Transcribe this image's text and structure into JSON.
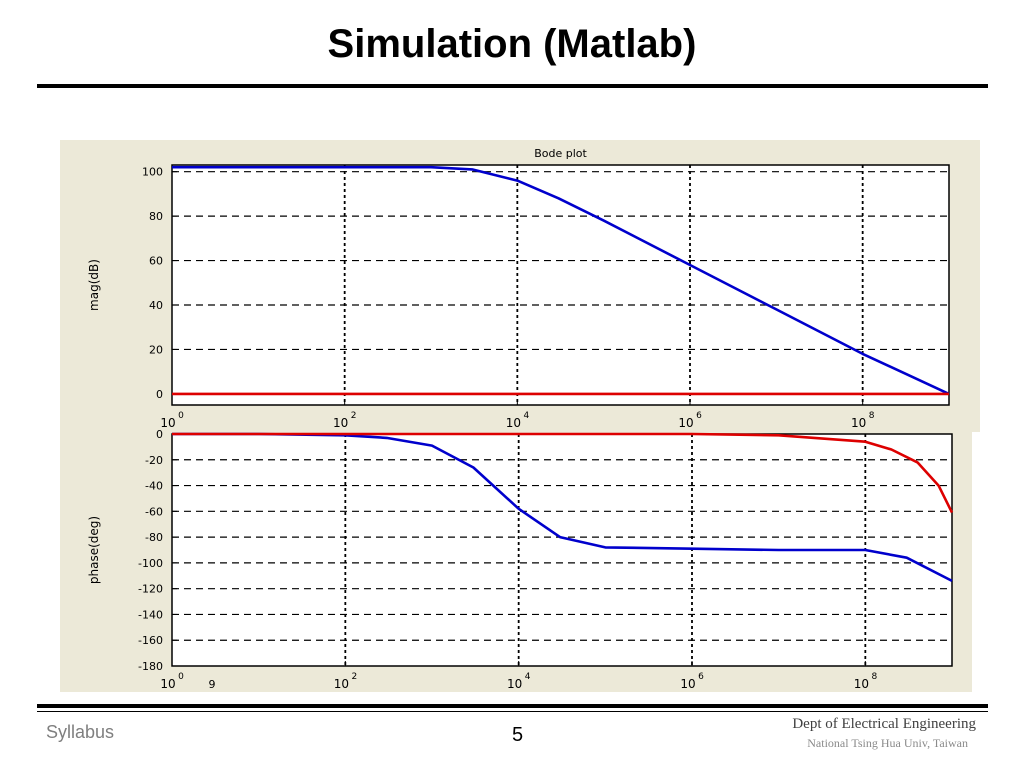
{
  "slide": {
    "title": "Simulation (Matlab)",
    "footer_left": "Syllabus",
    "page_number": "5",
    "footer_right_line1": "Dept of Electrical Engineering",
    "footer_right_line2": "National Tsing Hua Univ, Taiwan"
  },
  "colors": {
    "figure_background": "#ece9d8",
    "series_blue": "#0000cc",
    "series_red": "#dd0000",
    "grid": "#000000"
  },
  "chart_data": [
    {
      "type": "line",
      "title": "Bode plot",
      "xlabel": "",
      "ylabel": "mag(dB)",
      "x_scale": "log",
      "xlim": [
        1,
        1000000000
      ],
      "ylim": [
        -5,
        103
      ],
      "x_ticks": [
        {
          "base": "10",
          "exp": "0"
        },
        {
          "base": "10",
          "exp": "2"
        },
        {
          "base": "10",
          "exp": "4"
        },
        {
          "base": "10",
          "exp": "6"
        },
        {
          "base": "10",
          "exp": "8"
        }
      ],
      "y_ticks": [
        "100",
        "80",
        "60",
        "40",
        "20",
        "0"
      ],
      "grid": true,
      "series": [
        {
          "color": "#0000cc",
          "x": [
            1,
            10,
            100,
            1000,
            3000,
            10000,
            30000,
            100000,
            1000000,
            10000000,
            100000000,
            1000000000
          ],
          "y": [
            102,
            102,
            102,
            102,
            101,
            96,
            88,
            78,
            58,
            38,
            18,
            0
          ]
        },
        {
          "color": "#dd0000",
          "x": [
            1,
            100,
            10000,
            1000000,
            100000000,
            1000000000
          ],
          "y": [
            0,
            0,
            0,
            0,
            0,
            0
          ]
        }
      ]
    },
    {
      "type": "line",
      "title": "",
      "xlabel": "",
      "ylabel": "phase(deg)",
      "x_scale": "log",
      "xlim": [
        1,
        1000000000
      ],
      "ylim": [
        -180,
        0
      ],
      "x_ticks": [
        {
          "base": "10",
          "exp": "0"
        },
        {
          "base": "10",
          "exp": "2"
        },
        {
          "base": "10",
          "exp": "4"
        },
        {
          "base": "10",
          "exp": "6"
        },
        {
          "base": "10",
          "exp": "8"
        }
      ],
      "x_extra_tick": "9",
      "y_ticks": [
        "0",
        "-20",
        "-40",
        "-60",
        "-80",
        "-100",
        "-120",
        "-140",
        "-160",
        "-180"
      ],
      "grid": true,
      "series": [
        {
          "color": "#0000cc",
          "x": [
            1,
            10,
            100,
            300,
            1000,
            3000,
            10000,
            30000,
            100000,
            1000000,
            10000000,
            100000000,
            300000000,
            1000000000
          ],
          "y": [
            0,
            0,
            -1,
            -3,
            -9,
            -26,
            -58,
            -80,
            -88,
            -89,
            -90,
            -90,
            -96,
            -114
          ]
        },
        {
          "color": "#dd0000",
          "x": [
            1,
            1000,
            1000000,
            10000000,
            100000000,
            200000000,
            400000000,
            700000000,
            1000000000
          ],
          "y": [
            0,
            0,
            0,
            -1,
            -6,
            -12,
            -22,
            -40,
            -61
          ]
        }
      ]
    }
  ]
}
